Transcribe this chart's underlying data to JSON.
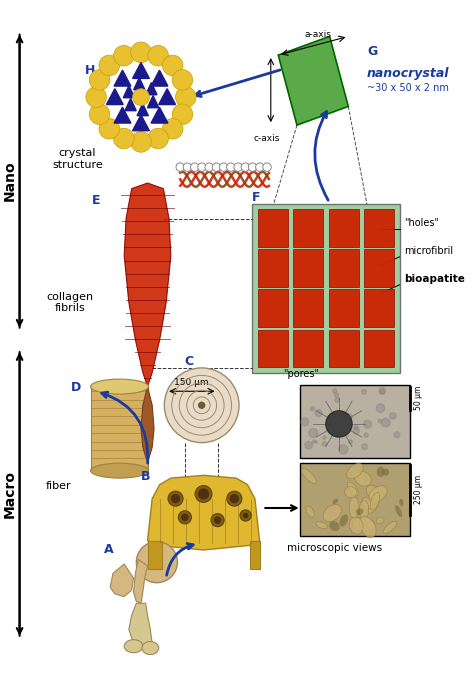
{
  "bg_color": "#ffffff",
  "label_color": "#1a3a9e",
  "arrow_color": "#1a3a9e",
  "green_color": "#5aaa4a",
  "red_color": "#cc2200",
  "yellow_color": "#e8c030",
  "blue_dark": "#1a1a8c",
  "bone_color": "#d4b88a",
  "text_labels": {
    "crystal_structure": "crystal\nstructure",
    "nanocrystal_title": "nanocrystal",
    "nanocrystal_sub": "~30 x 50 x 2 nm",
    "collagen_fibrils": "collagen\nfibrils",
    "fiber": "fiber",
    "microscopic_views": "microscopic views",
    "holes": "\"holes\"",
    "microfibril": "microfibril",
    "bioapatite": "bioapatite",
    "pores": "\"pores\"",
    "a_axis": "a-axis",
    "c_axis": "c-axis",
    "scale_150um": "150 μm",
    "scale_50um": "50 μm",
    "scale_250um": "250 μm",
    "nano": "Nano",
    "macro": "Macro"
  }
}
